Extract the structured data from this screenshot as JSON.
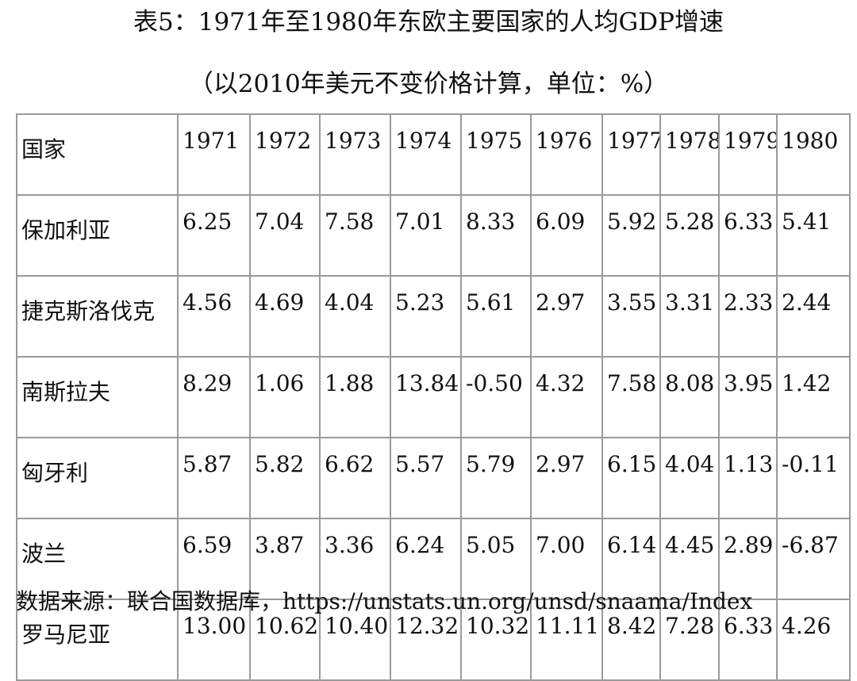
{
  "title": "表5：1971年至1980年东欧主要国家的人均GDP增速",
  "subtitle": "（以2010年美元不变价格计算，单位：%）",
  "table": {
    "header_label": "国家",
    "years": [
      "1971",
      "1972",
      "1973",
      "1974",
      "1975",
      "1976",
      "1977",
      "1978",
      "1979",
      "1980"
    ],
    "rows": [
      {
        "country": "保加利亚",
        "values": [
          "6.25",
          "7.04",
          "7.58",
          "7.01",
          "8.33",
          "6.09",
          "5.92",
          "5.28",
          "6.33",
          "5.41"
        ]
      },
      {
        "country": "捷克斯洛伐克",
        "values": [
          "4.56",
          "4.69",
          "4.04",
          "5.23",
          "5.61",
          "2.97",
          "3.55",
          "3.31",
          "2.33",
          "2.44"
        ]
      },
      {
        "country": "南斯拉夫",
        "values": [
          "8.29",
          "1.06",
          "1.88",
          "13.84",
          "-0.50",
          "4.32",
          "7.58",
          "8.08",
          "3.95",
          "1.42"
        ]
      },
      {
        "country": "匈牙利",
        "values": [
          "5.87",
          "5.82",
          "6.62",
          "5.57",
          "5.79",
          "2.97",
          "6.15",
          "4.04",
          "1.13",
          "-0.11"
        ]
      },
      {
        "country": "波兰",
        "values": [
          "6.59",
          "3.87",
          "3.36",
          "6.24",
          "5.05",
          "7.00",
          "6.14",
          "4.45",
          "2.89",
          "-6.87"
        ]
      },
      {
        "country": "罗马尼亚",
        "values": [
          "13.00",
          "10.62",
          "10.40",
          "12.32",
          "10.32",
          "11.11",
          "8.42",
          "7.28",
          "6.33",
          "4.26"
        ]
      }
    ]
  },
  "source": "数据来源：联合国数据库，https://unstats.un.org/unsd/snaama/Index"
}
